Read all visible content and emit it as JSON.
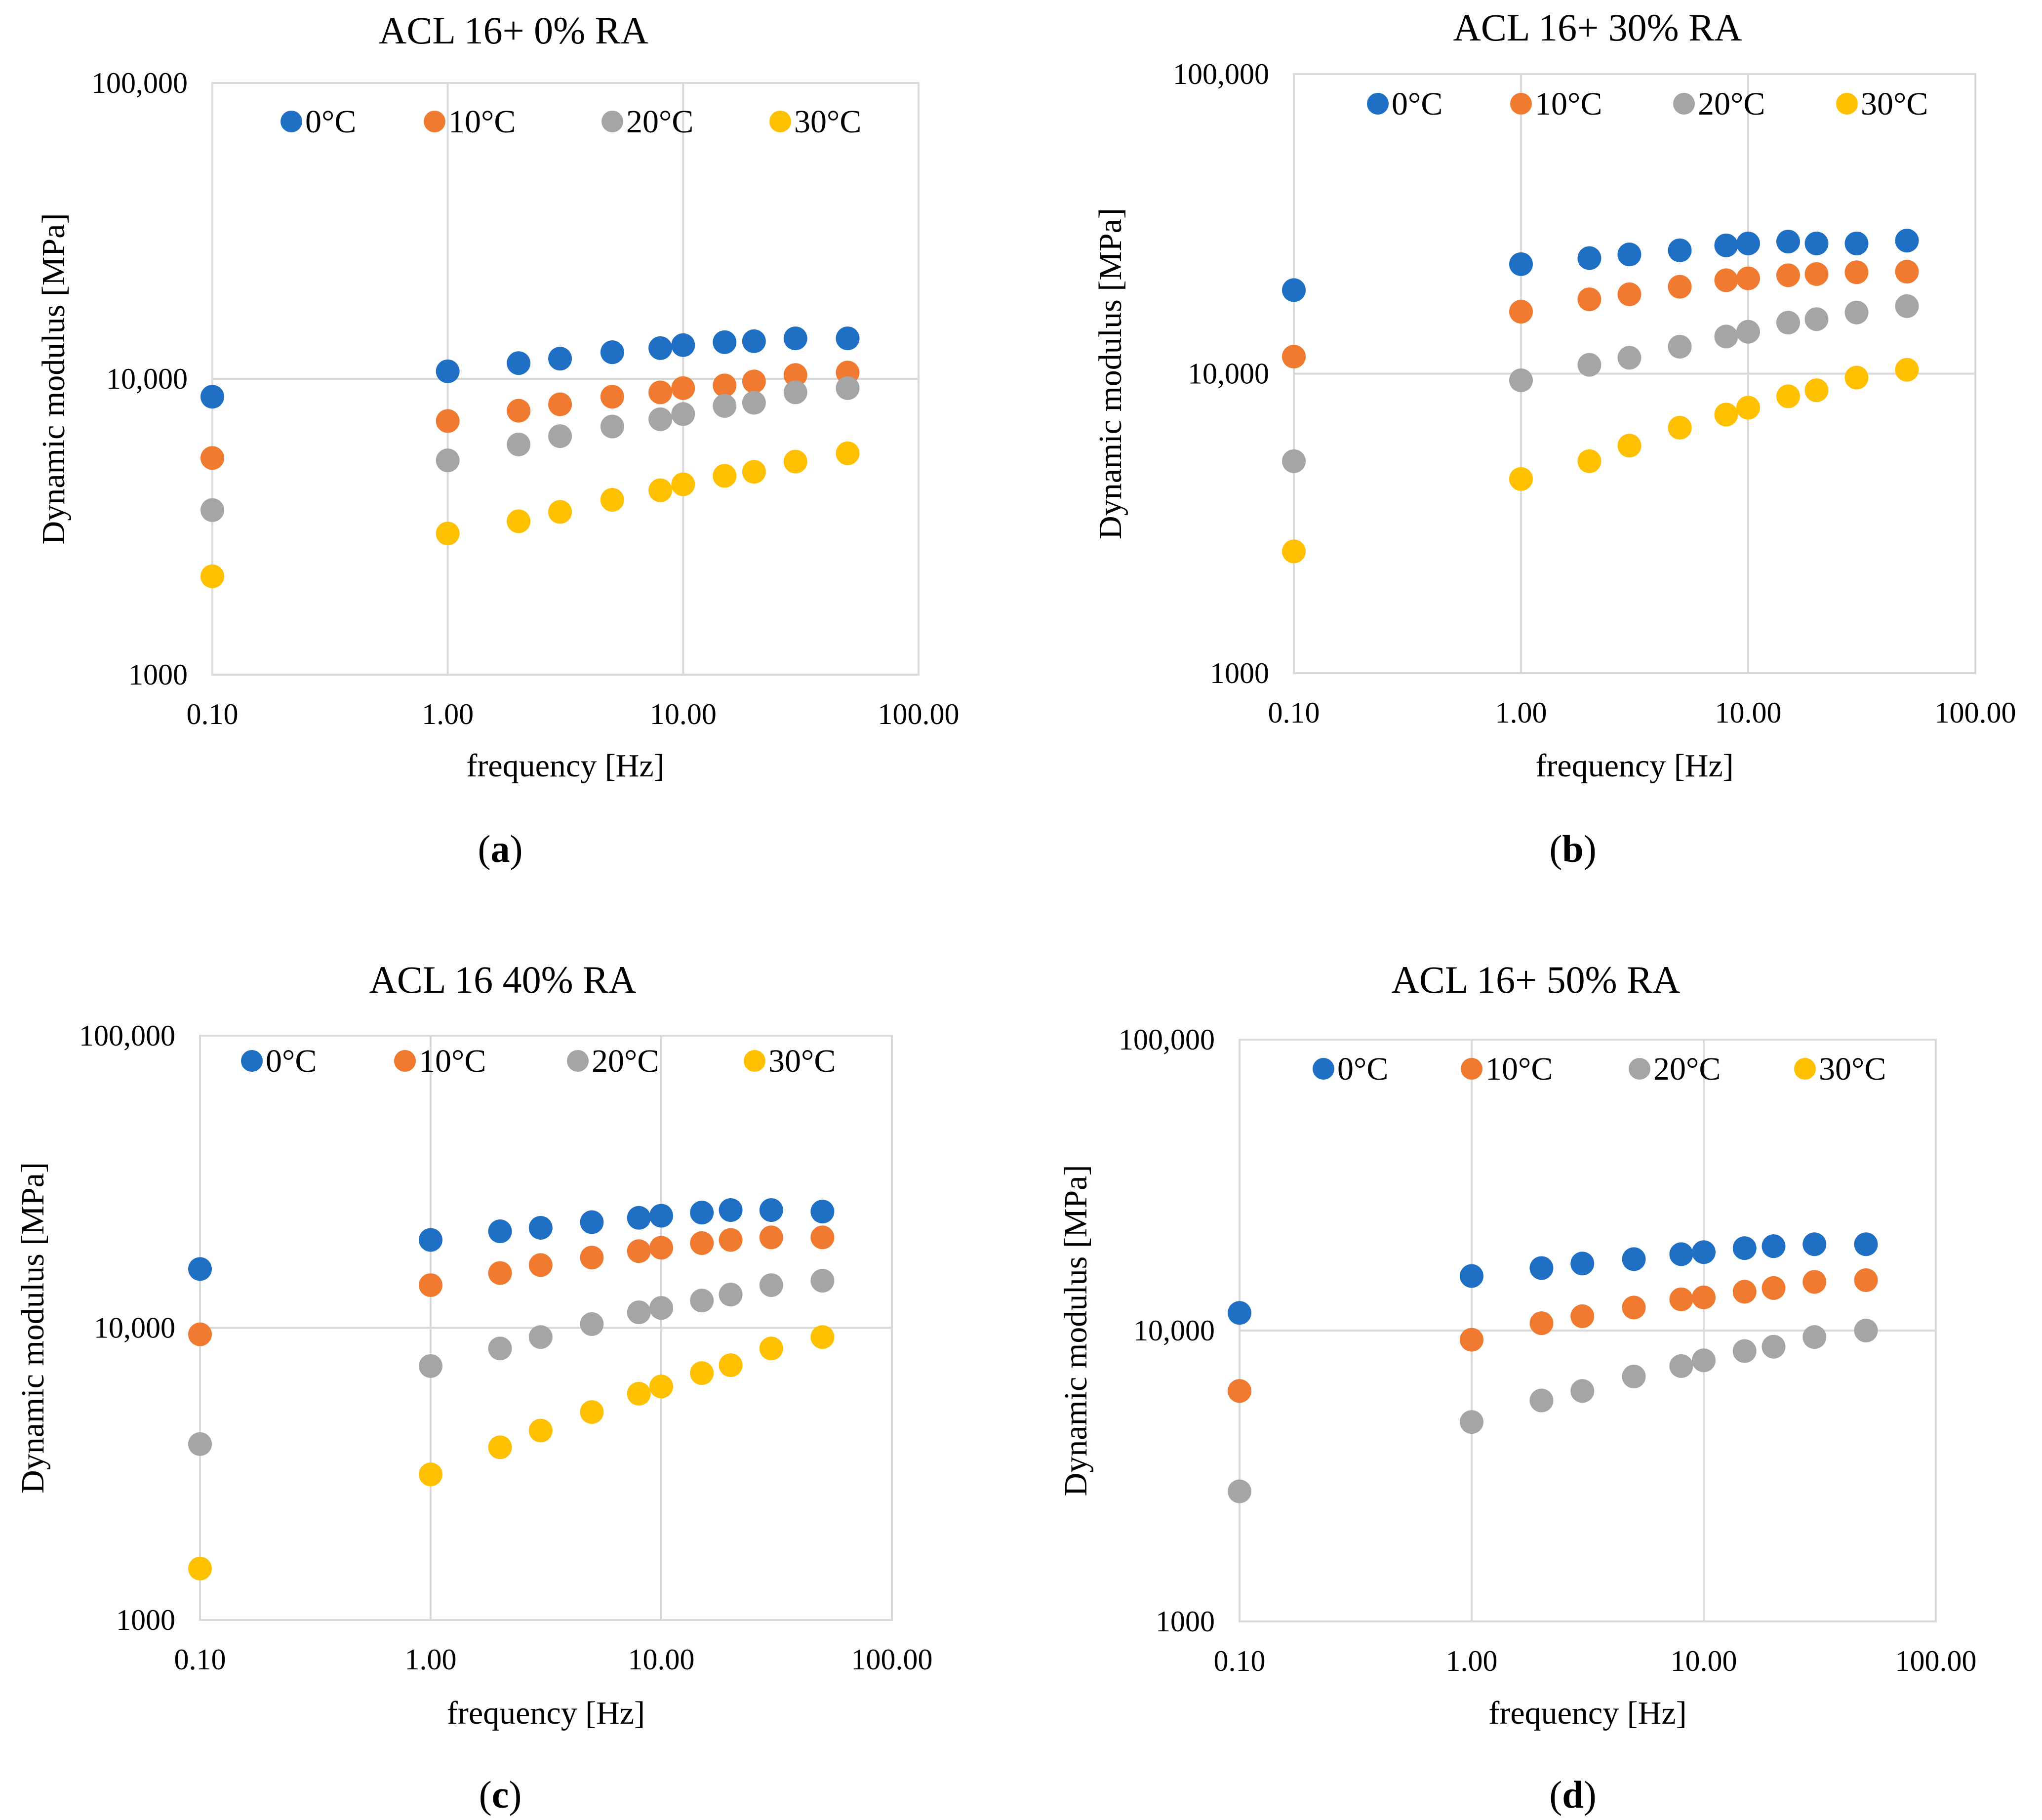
{
  "colors": {
    "0C": "#1f70c4",
    "10C": "#f07a30",
    "20C": "#a5a5a5",
    "30C": "#ffc000",
    "grid": "#d9d9d9"
  },
  "chart_data": [
    {
      "id": "a",
      "type": "scatter",
      "title": "ACL  16+ 0% RA",
      "xlabel": "frequency [Hz]",
      "ylabel": "Dynamic modulus [MPa]",
      "xscale": "log",
      "yscale": "log",
      "xlim": [
        0.1,
        100
      ],
      "ylim": [
        1000,
        100000
      ],
      "xticks": [
        {
          "value": 0.1,
          "label": "0.10"
        },
        {
          "value": 1,
          "label": "1.00"
        },
        {
          "value": 10,
          "label": "10.00"
        },
        {
          "value": 100,
          "label": "100.00"
        }
      ],
      "yticks": [
        {
          "value": 1000,
          "label": "1000"
        },
        {
          "value": 10000,
          "label": "10,000"
        },
        {
          "value": 100000,
          "label": "100,000"
        }
      ],
      "grid": true,
      "legend_position": "top",
      "caption": {
        "open": "(",
        "letter": "a",
        "close": ")"
      },
      "x": [
        0.1,
        1,
        2,
        3,
        5,
        8,
        10,
        15,
        20,
        30,
        50
      ],
      "series": [
        {
          "name": "0°C",
          "color_key": "0C",
          "values": [
            8700,
            10600,
            11300,
            11700,
            12300,
            12700,
            13000,
            13300,
            13400,
            13700,
            13700
          ]
        },
        {
          "name": "10°C",
          "color_key": "10C",
          "values": [
            5400,
            7200,
            7800,
            8200,
            8700,
            9000,
            9300,
            9500,
            9800,
            10300,
            10500
          ]
        },
        {
          "name": "20°C",
          "color_key": "20C",
          "values": [
            3600,
            5300,
            6000,
            6400,
            6900,
            7300,
            7600,
            8100,
            8300,
            9000,
            9300
          ]
        },
        {
          "name": "30°C",
          "color_key": "30C",
          "values": [
            2150,
            3000,
            3300,
            3550,
            3900,
            4200,
            4400,
            4700,
            4850,
            5250,
            5600
          ]
        }
      ]
    },
    {
      "id": "b",
      "type": "scatter",
      "title": "ACL  16+ 30% RA",
      "xlabel": "frequency [Hz]",
      "ylabel": "Dynamic modulus [MPa]",
      "xscale": "log",
      "yscale": "log",
      "xlim": [
        0.1,
        100
      ],
      "ylim": [
        1000,
        100000
      ],
      "xticks": [
        {
          "value": 0.1,
          "label": "0.10"
        },
        {
          "value": 1,
          "label": "1.00"
        },
        {
          "value": 10,
          "label": "10.00"
        },
        {
          "value": 100,
          "label": "100.00"
        }
      ],
      "yticks": [
        {
          "value": 1000,
          "label": "1000"
        },
        {
          "value": 10000,
          "label": "10,000"
        },
        {
          "value": 100000,
          "label": "100,000"
        }
      ],
      "grid": true,
      "legend_position": "top",
      "caption": {
        "open": "(",
        "letter": "b",
        "close": ")"
      },
      "x": [
        0.1,
        1,
        2,
        3,
        5,
        8,
        10,
        15,
        20,
        30,
        50
      ],
      "series": [
        {
          "name": "0°C",
          "color_key": "0C",
          "values": [
            19000,
            23200,
            24300,
            25000,
            25800,
            26800,
            27200,
            27600,
            27200,
            27200,
            27800
          ]
        },
        {
          "name": "10°C",
          "color_key": "10C",
          "values": [
            11400,
            16100,
            17700,
            18400,
            19500,
            20500,
            20800,
            21300,
            21500,
            21800,
            21900
          ]
        },
        {
          "name": "20°C",
          "color_key": "20C",
          "values": [
            5100,
            9500,
            10700,
            11300,
            12300,
            13300,
            13800,
            14800,
            15200,
            16000,
            16800
          ]
        },
        {
          "name": "30°C",
          "color_key": "30C",
          "values": [
            2550,
            4450,
            5100,
            5750,
            6600,
            7300,
            7700,
            8400,
            8800,
            9700,
            10300
          ]
        }
      ]
    },
    {
      "id": "c",
      "type": "scatter",
      "title": "ACL  16 40% RA",
      "xlabel": "frequency [Hz]",
      "ylabel": "Dynamic modulus [MPa]",
      "xscale": "log",
      "yscale": "log",
      "xlim": [
        0.1,
        100
      ],
      "ylim": [
        1000,
        100000
      ],
      "xticks": [
        {
          "value": 0.1,
          "label": "0.10"
        },
        {
          "value": 1,
          "label": "1.00"
        },
        {
          "value": 10,
          "label": "10.00"
        },
        {
          "value": 100,
          "label": "100.00"
        }
      ],
      "yticks": [
        {
          "value": 1000,
          "label": "1000"
        },
        {
          "value": 10000,
          "label": "10,000"
        },
        {
          "value": 100000,
          "label": "100,000"
        }
      ],
      "grid": true,
      "legend_position": "top",
      "caption": {
        "open": "(",
        "letter": "c",
        "close": ")"
      },
      "x": [
        0.1,
        1,
        2,
        3,
        5,
        8,
        10,
        15,
        20,
        30,
        50
      ],
      "series": [
        {
          "name": "0°C",
          "color_key": "0C",
          "values": [
            15900,
            20000,
            21400,
            22000,
            23000,
            23800,
            24200,
            24800,
            25300,
            25300,
            25000
          ]
        },
        {
          "name": "10°C",
          "color_key": "10C",
          "values": [
            9500,
            14000,
            15400,
            16400,
            17400,
            18300,
            18800,
            19500,
            20000,
            20400,
            20400
          ]
        },
        {
          "name": "20°C",
          "color_key": "20C",
          "values": [
            4000,
            7400,
            8500,
            9300,
            10300,
            11300,
            11700,
            12400,
            13000,
            14000,
            14500
          ]
        },
        {
          "name": "30°C",
          "color_key": "30C",
          "values": [
            1500,
            3150,
            3900,
            4450,
            5150,
            5950,
            6300,
            7000,
            7450,
            8500,
            9300
          ]
        }
      ]
    },
    {
      "id": "d",
      "type": "scatter",
      "title": "ACL  16+ 50% RA",
      "xlabel": "frequency [Hz]",
      "ylabel": "Dynamic modulus [MPa]",
      "xscale": "log",
      "yscale": "log",
      "xlim": [
        0.1,
        100
      ],
      "ylim": [
        1000,
        100000
      ],
      "xticks": [
        {
          "value": 0.1,
          "label": "0.10"
        },
        {
          "value": 1,
          "label": "1.00"
        },
        {
          "value": 10,
          "label": "10.00"
        },
        {
          "value": 100,
          "label": "100.00"
        }
      ],
      "yticks": [
        {
          "value": 1000,
          "label": "1000"
        },
        {
          "value": 10000,
          "label": "10,000"
        },
        {
          "value": 100000,
          "label": "100,000"
        }
      ],
      "grid": true,
      "legend_position": "top",
      "caption": {
        "open": "(",
        "letter": "d",
        "close": ")"
      },
      "x": [
        0.1,
        1,
        2,
        3,
        5,
        8,
        10,
        15,
        20,
        30,
        50
      ],
      "series": [
        {
          "name": "0°C",
          "color_key": "0C",
          "values": [
            11500,
            15400,
            16400,
            17000,
            17600,
            18300,
            18600,
            19200,
            19500,
            19800,
            19800
          ]
        },
        {
          "name": "10°C",
          "color_key": "10C",
          "values": [
            6200,
            9300,
            10600,
            11200,
            12000,
            12800,
            13000,
            13600,
            14000,
            14700,
            14900
          ]
        },
        {
          "name": "20°C",
          "color_key": "20C",
          "values": [
            2800,
            4850,
            5750,
            6200,
            6950,
            7550,
            7900,
            8500,
            8800,
            9500,
            10000
          ]
        },
        {
          "name": "30°C",
          "color_key": "30C",
          "values": []
        }
      ]
    }
  ]
}
